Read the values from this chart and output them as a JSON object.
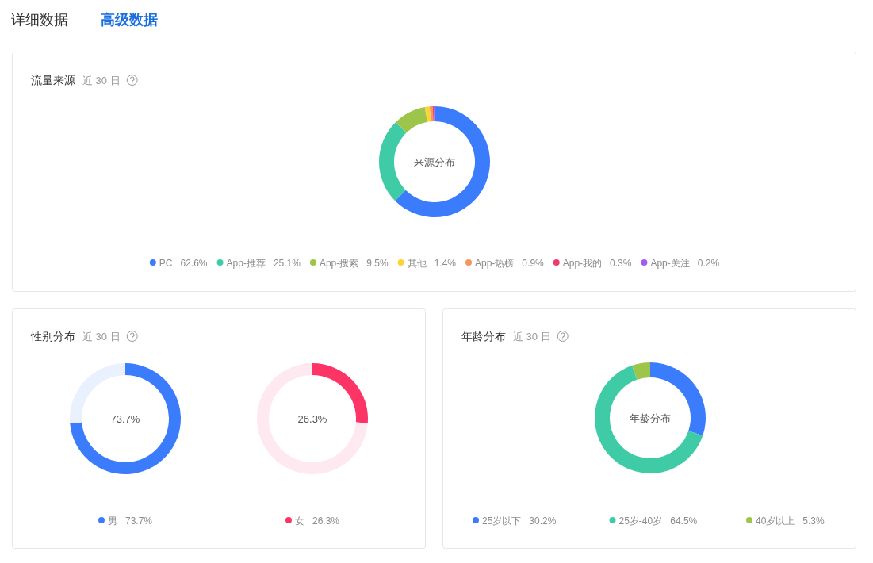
{
  "chart_data": [
    {
      "type": "other",
      "annotations": [
        "详细数据",
        "高级数据"
      ]
    },
    {
      "type": "donut",
      "title": "流量来源",
      "subtitle": "近 30 日",
      "categories": [
        "PC",
        "App-推荐",
        "App-搜索",
        "其他",
        "App-热榜",
        "App-我的",
        "App-关注"
      ],
      "values": [
        62.6,
        25.1,
        9.5,
        1.4,
        0.9,
        0.3,
        0.2
      ],
      "value_labels": [
        "62.6%",
        "25.1%",
        "9.5%",
        "1.4%",
        "0.9%",
        "0.3%",
        "0.2%"
      ],
      "colors": [
        "#3b7cfd",
        "#3fcba6",
        "#9cc54a",
        "#fbd43a",
        "#f49660",
        "#ec3d68",
        "#a35cf0"
      ],
      "annotations": [
        "来源分布"
      ],
      "legend": "bottom"
    },
    {
      "type": "donut",
      "title": "性别分布",
      "subtitle": "近 30 日",
      "categories": [
        "男",
        null
      ],
      "values": [
        73.7,
        26.3
      ],
      "value_labels": [
        "73.7%",
        null
      ],
      "colors": [
        "#3b7cfd",
        "#e8f1fd"
      ],
      "annotations": [
        "73.7%"
      ],
      "legend": "bottom"
    },
    {
      "type": "donut",
      "categories": [
        "女",
        null
      ],
      "values": [
        26.3,
        73.7
      ],
      "value_labels": [
        "26.3%",
        null
      ],
      "colors": [
        "#fd3466",
        "#fde9ef"
      ],
      "annotations": [
        "26.3%"
      ],
      "legend": "bottom"
    },
    {
      "type": "donut",
      "title": "年龄分布",
      "subtitle": "近 30 日",
      "categories": [
        "25岁以下",
        "25岁-40岁",
        "40岁以上"
      ],
      "values": [
        30.2,
        64.5,
        5.3
      ],
      "value_labels": [
        "30.2%",
        "64.5%",
        "5.3%"
      ],
      "colors": [
        "#3b7cfd",
        "#3fcba6",
        "#9cc54a"
      ],
      "annotations": [
        "年龄分布"
      ],
      "legend": "bottom"
    }
  ]
}
